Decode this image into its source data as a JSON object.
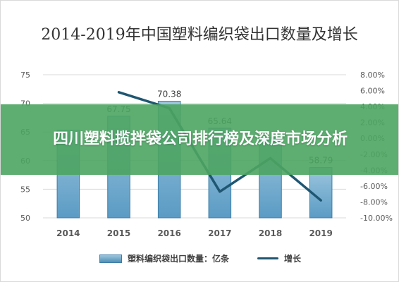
{
  "chart_data": {
    "type": "bar",
    "title": "2014-2019年中国塑料编织袋出口数量及增长",
    "categories": [
      "2014",
      "2015",
      "2016",
      "2017",
      "2018",
      "2019"
    ],
    "series": [
      {
        "name": "塑料编织袋出口数量：亿条",
        "type": "bar",
        "axis": "left",
        "values": [
          65.3,
          67.75,
          70.38,
          65.64,
          64.0,
          58.79
        ],
        "data_labels": [
          "",
          "67.75",
          "70.38",
          "65.64",
          "",
          "58.79"
        ]
      },
      {
        "name": "增长",
        "type": "line",
        "axis": "right",
        "values": [
          null,
          5.8,
          3.8,
          -6.7,
          -2.5,
          -7.8
        ]
      }
    ],
    "y_left": {
      "ticks": [
        "75",
        "70",
        "65",
        "60",
        "55",
        "50"
      ],
      "ylim": [
        50,
        75
      ]
    },
    "y_right": {
      "ticks": [
        "8.00%",
        "6.00%",
        "4.00%",
        "2.00%",
        "0.00%",
        "-2.00%",
        "-4.00%",
        "-6.00%",
        "-8.00%",
        "-10.00%"
      ],
      "ylim": [
        -10,
        8
      ]
    },
    "legend_position": "bottom",
    "colors": {
      "bar": "#5b9bc4",
      "bar_top": "#9cc6de",
      "bar_edge": "#3c7ea8",
      "line": "#1f5671",
      "grid": "#d9d9d9"
    }
  },
  "overlay": {
    "text": "四川塑料揽拌袋公司排行榜及深度市场分析",
    "color": "#4da562"
  }
}
